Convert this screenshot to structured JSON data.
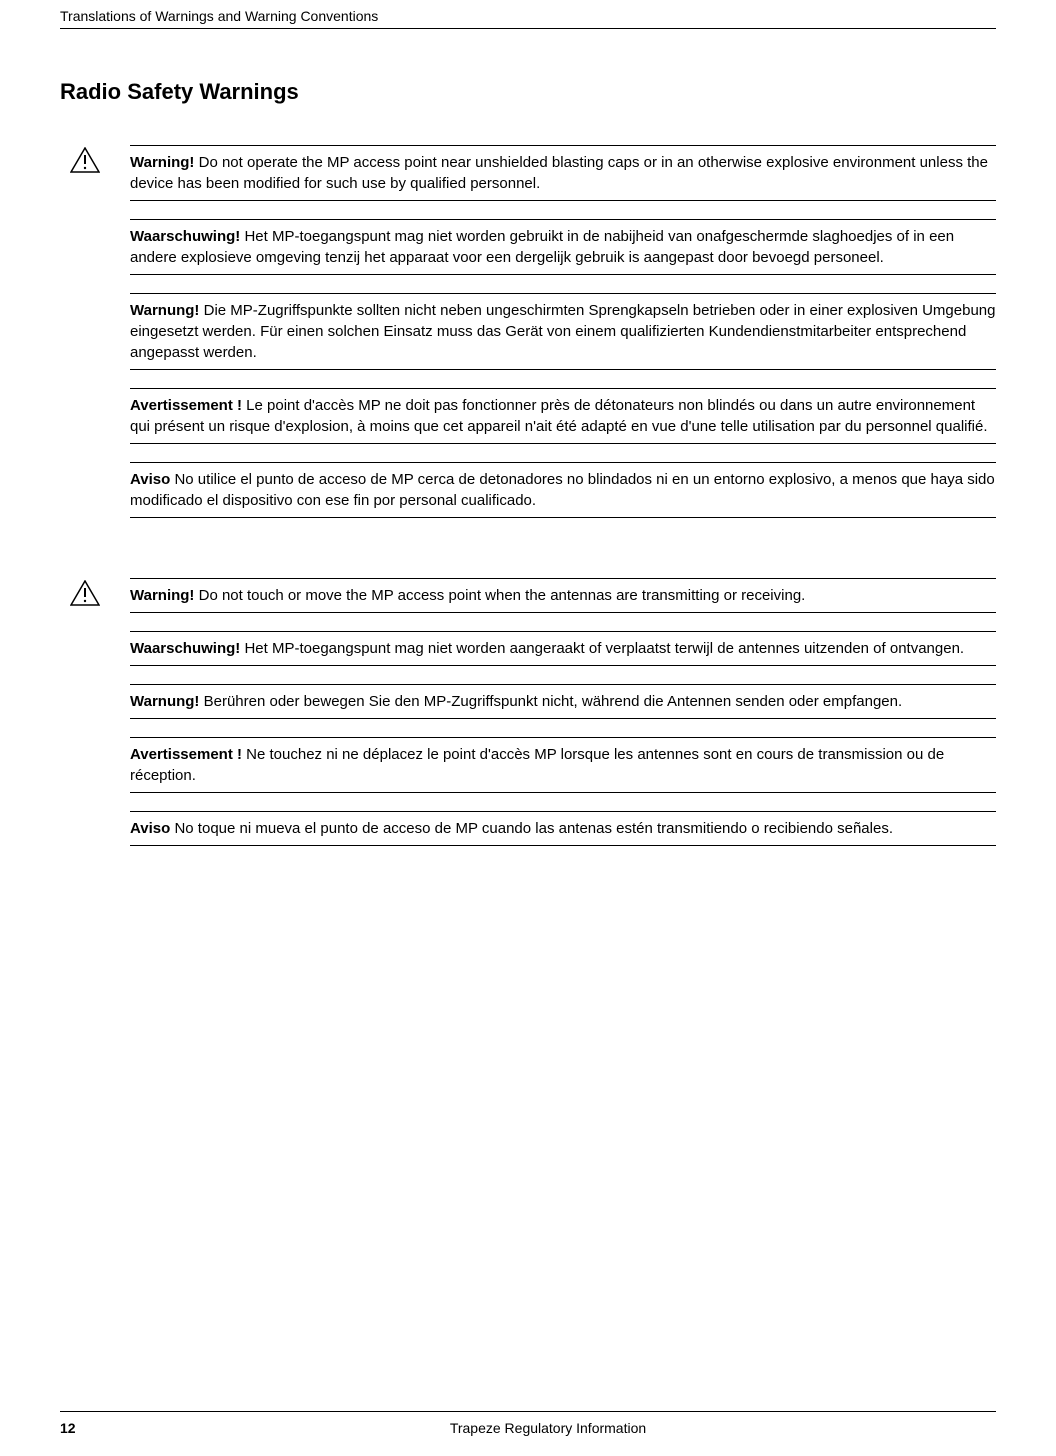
{
  "header": {
    "chapter_title": "Translations of Warnings and Warning Conventions"
  },
  "section": {
    "title": "Radio Safety Warnings"
  },
  "warning_group_1": {
    "blocks": [
      {
        "label": "Warning!",
        "has_icon": true,
        "text": "Do not operate the MP access point near unshielded blasting caps or in an otherwise explosive environment unless the device has been modified for such use by qualified personnel."
      },
      {
        "label": "Waarschuwing!",
        "has_icon": false,
        "text": "Het MP-toegangspunt mag niet worden gebruikt in de nabijheid van onafgeschermde slaghoedjes of in een andere explosieve omgeving tenzij het apparaat voor een dergelijk gebruik is aangepast door bevoegd personeel."
      },
      {
        "label": "Warnung!",
        "has_icon": false,
        "text": "Die MP-Zugriffspunkte sollten nicht neben ungeschirmten Sprengkapseln betrieben oder in einer explosiven Umgebung eingesetzt werden. Für einen solchen Einsatz muss das Gerät von einem qualifizierten Kundendienstmitarbeiter entsprechend angepasst werden."
      },
      {
        "label": "Avertissement !",
        "has_icon": false,
        "text": "Le point d'accès MP ne doit pas fonctionner près de détonateurs non blindés ou dans un autre environnement qui présent un risque d'explosion, à moins que cet appareil n'ait été adapté en vue d'une telle utilisation par du personnel qualifié."
      },
      {
        "label": "Aviso",
        "has_icon": false,
        "text": "No utilice el punto de acceso de MP cerca de detonadores no blindados ni en un entorno explosivo, a menos que haya sido modificado el dispositivo con ese fin por personal cualificado."
      }
    ]
  },
  "warning_group_2": {
    "blocks": [
      {
        "label": "Warning!",
        "has_icon": true,
        "text": "Do not touch or move the MP access point when the antennas are transmitting or receiving."
      },
      {
        "label": "Waarschuwing!",
        "has_icon": false,
        "text": "Het MP-toegangspunt mag niet worden aangeraakt of verplaatst terwijl de antennes uitzenden of ontvangen."
      },
      {
        "label": "Warnung!",
        "has_icon": false,
        "text": "Berühren oder bewegen Sie den MP-Zugriffspunkt nicht, während die Antennen senden oder empfangen."
      },
      {
        "label": "Avertissement !",
        "has_icon": false,
        "text": "Ne touchez ni ne déplacez le point d'accès MP lorsque les antennes sont en cours de transmission ou de réception."
      },
      {
        "label": "Aviso",
        "has_icon": false,
        "text": "No toque ni mueva el punto de acceso de MP cuando las antenas estén transmitiendo o recibiendo señales."
      }
    ]
  },
  "footer": {
    "page_number": "12",
    "doc_title": "Trapeze Regulatory Information"
  },
  "icon_name": "warning-triangle-icon"
}
